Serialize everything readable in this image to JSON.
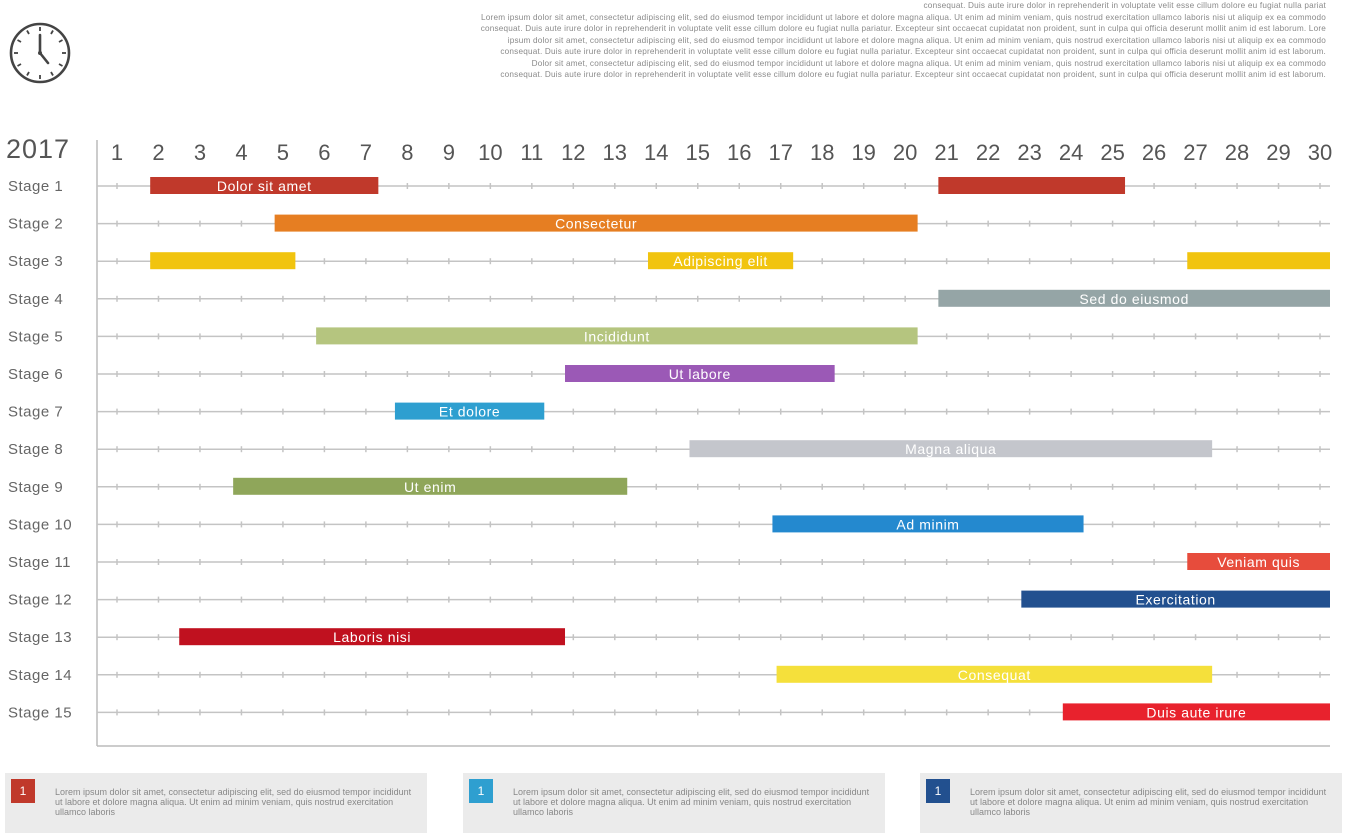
{
  "intro_text": [
    "consequat. Duis aute irure dolor in reprehenderit in voluptate velit esse cillum dolore eu fugiat nulla pariat",
    "Lorem ipsum dolor sit amet, consectetur adipiscing elit, sed do eiusmod tempor incididunt ut labore et dolore magna aliqua. Ut enim ad minim veniam, quis nostrud exercitation ullamco laboris nisi ut aliquip ex ea commodo",
    "consequat. Duis aute irure dolor in reprehenderit in voluptate velit esse cillum dolore eu fugiat nulla pariatur. Excepteur sint occaecat cupidatat non proident, sunt in culpa qui officia deserunt mollit anim id est laborum. Lore",
    "ipsum dolor sit amet, consectetur adipiscing elit, sed do eiusmod tempor incididunt ut labore et dolore magna aliqua. Ut enim ad minim veniam, quis nostrud exercitation ullamco laboris nisi ut aliquip ex ea commodo",
    "consequat. Duis aute irure dolor in reprehenderit in voluptate velit esse cillum dolore eu fugiat nulla pariatur. Excepteur sint occaecat cupidatat non proident, sunt in culpa qui officia deserunt mollit anim id est laborum.",
    "Dolor sit amet, consectetur adipiscing elit, sed do eiusmod tempor incididunt ut labore et dolore magna aliqua. Ut enim ad minim veniam, quis nostrud exercitation ullamco laboris nisi ut aliquip ex ea commodo",
    "consequat. Duis aute irure dolor in reprehenderit in voluptate velit esse cillum dolore eu fugiat nulla pariatur. Excepteur sint occaecat cupidatat non proident, sunt in culpa qui officia deserunt mollit anim id est laborum."
  ],
  "icons": {
    "clock": "clock-icon"
  },
  "colors": {
    "axis": "#bbbbbb",
    "grid": "#c4c4c4",
    "card_bg": "#ebebeb"
  },
  "chart_data": {
    "type": "gantt",
    "year_label": "2017",
    "days": [
      1,
      2,
      3,
      4,
      5,
      6,
      7,
      8,
      9,
      10,
      11,
      12,
      13,
      14,
      15,
      16,
      17,
      18,
      19,
      20,
      21,
      22,
      23,
      24,
      25,
      26,
      27,
      28,
      29,
      30
    ],
    "day_labels": [
      "1",
      "2",
      "3",
      "4",
      "5",
      "6",
      "7",
      "8",
      "9",
      "10",
      "11",
      "12",
      "13",
      "14",
      "15",
      "16",
      "17",
      "18",
      "19",
      "20",
      "21",
      "22",
      "23",
      "24",
      "25",
      "26",
      "27",
      "28",
      "29",
      "30"
    ],
    "stages": [
      "Stage 1",
      "Stage 2",
      "Stage 3",
      "Stage 4",
      "Stage 5",
      "Stage 6",
      "Stage 7",
      "Stage 8",
      "Stage 9",
      "Stage 10",
      "Stage 11",
      "Stage 12",
      "Stage 13",
      "Stage 14",
      "Stage 15"
    ],
    "tasks": [
      {
        "stage": 1,
        "start": 1.8,
        "end": 7.3,
        "label": "Dolor sit amet",
        "color": "#c0392b"
      },
      {
        "stage": 1,
        "start": 20.8,
        "end": 25.3,
        "label": "",
        "color": "#c0392b"
      },
      {
        "stage": 2,
        "start": 4.8,
        "end": 20.3,
        "label": "Consectetur",
        "color": "#e67e22"
      },
      {
        "stage": 3,
        "start": 1.8,
        "end": 5.3,
        "label": "",
        "color": "#f1c40f"
      },
      {
        "stage": 3,
        "start": 13.8,
        "end": 17.3,
        "label": "Adipiscing elit",
        "color": "#f1c40f"
      },
      {
        "stage": 3,
        "start": 26.8,
        "end": 30.3,
        "label": "",
        "color": "#f1c40f"
      },
      {
        "stage": 4,
        "start": 20.8,
        "end": 30.3,
        "label": "Sed do eiusmod",
        "color": "#95a5a6"
      },
      {
        "stage": 5,
        "start": 5.8,
        "end": 20.3,
        "label": "Incididunt",
        "color": "#b5c57f"
      },
      {
        "stage": 6,
        "start": 11.8,
        "end": 18.3,
        "label": "Ut labore",
        "color": "#9b59b6"
      },
      {
        "stage": 7,
        "start": 7.7,
        "end": 11.3,
        "label": "Et dolore",
        "color": "#2e9fd0"
      },
      {
        "stage": 8,
        "start": 14.8,
        "end": 27.4,
        "label": "Magna aliqua",
        "color": "#c4c6cc"
      },
      {
        "stage": 9,
        "start": 3.8,
        "end": 13.3,
        "label": "Ut enim",
        "color": "#8fa65a"
      },
      {
        "stage": 10,
        "start": 16.8,
        "end": 24.3,
        "label": "Ad minim",
        "color": "#2489cf"
      },
      {
        "stage": 11,
        "start": 26.8,
        "end": 30.3,
        "label": "Veniam quis",
        "color": "#e74c3c"
      },
      {
        "stage": 12,
        "start": 22.8,
        "end": 30.3,
        "label": "Exercitation",
        "color": "#22508f"
      },
      {
        "stage": 13,
        "start": 2.5,
        "end": 11.8,
        "label": "Laboris nisi",
        "color": "#c0111f"
      },
      {
        "stage": 14,
        "start": 16.9,
        "end": 27.4,
        "label": "Consequat",
        "color": "#f5e03b"
      },
      {
        "stage": 15,
        "start": 23.8,
        "end": 30.3,
        "label": "Duis aute irure",
        "color": "#e8222d"
      }
    ],
    "grid": true
  },
  "cards": [
    {
      "number": "1",
      "color": "#c0392b",
      "text": "Lorem ipsum dolor sit amet, consectetur adipiscing elit, sed do eiusmod tempor incididunt ut labore et dolore magna aliqua. Ut enim ad minim veniam, quis nostrud exercitation ullamco laboris"
    },
    {
      "number": "1",
      "color": "#2e9fd0",
      "text": "Lorem ipsum dolor sit amet, consectetur adipiscing elit, sed do eiusmod tempor incididunt ut labore et dolore magna aliqua. Ut enim ad minim veniam, quis nostrud exercitation ullamco laboris"
    },
    {
      "number": "1",
      "color": "#22508f",
      "text": "Lorem ipsum dolor sit amet, consectetur adipiscing elit, sed do eiusmod tempor incididunt ut labore et dolore magna aliqua. Ut enim ad minim veniam, quis nostrud exercitation ullamco laboris"
    }
  ]
}
